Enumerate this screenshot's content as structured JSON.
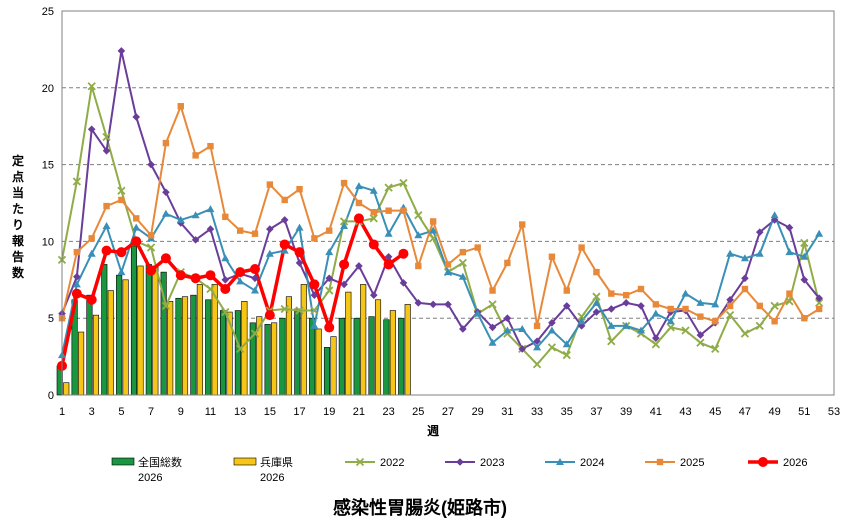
{
  "chart_data": {
    "type": "bar",
    "title": "感染性胃腸炎(姫路市)",
    "xlabel": "週",
    "ylabel": "定点当たり報告数",
    "xlim": [
      1,
      53
    ],
    "ylim": [
      0,
      25
    ],
    "x_ticks": [
      1,
      3,
      5,
      7,
      9,
      11,
      13,
      15,
      17,
      19,
      21,
      23,
      25,
      27,
      29,
      31,
      33,
      35,
      37,
      39,
      41,
      43,
      45,
      47,
      49,
      51,
      53
    ],
    "y_ticks": [
      0,
      5,
      10,
      15,
      20,
      25
    ],
    "grid": "horizontal-dashed",
    "legend_position": "bottom",
    "bar_series": [
      {
        "name": "全国総数",
        "name_line2": "2026",
        "color": "#1a9641",
        "values": [
          1.9,
          6.2,
          6.5,
          8.5,
          7.8,
          9.7,
          8.5,
          8.0,
          6.3,
          6.5,
          6.2,
          5.5,
          5.5,
          4.7,
          4.6,
          5.0,
          5.6,
          5.0,
          3.1,
          5.0,
          5.0,
          5.1,
          4.9,
          5.0
        ]
      },
      {
        "name": "兵庫県",
        "name_line2": "2026",
        "color": "#f5c518",
        "values": [
          0.8,
          4.1,
          5.2,
          6.8,
          7.5,
          8.4,
          8.4,
          6.1,
          6.4,
          7.2,
          7.2,
          5.4,
          6.1,
          5.1,
          4.7,
          6.4,
          7.2,
          4.3,
          3.8,
          6.7,
          7.2,
          6.2,
          5.5,
          5.9
        ]
      }
    ],
    "line_series": [
      {
        "name": "2022",
        "color": "#8fac48",
        "marker": "x",
        "values": [
          8.8,
          13.9,
          20.1,
          16.8,
          13.3,
          10.0,
          9.6,
          5.8,
          8.0,
          7.6,
          6.9,
          5.4,
          3.0,
          4.0,
          5.5,
          5.6,
          5.5,
          5.5,
          6.8,
          11.3,
          11.3,
          11.5,
          13.5,
          13.8,
          11.7,
          10.2,
          8.0,
          8.6,
          5.3,
          5.9,
          4.0,
          3.0,
          2.0,
          3.1,
          2.6,
          5.1,
          6.4,
          3.5,
          4.5,
          4.0,
          3.3,
          4.4,
          4.2,
          3.4,
          3.0,
          5.2,
          4.0,
          4.5,
          5.8,
          6.1,
          9.9,
          6.0
        ]
      },
      {
        "name": "2023",
        "color": "#6a3d9a",
        "marker": "diamond",
        "values": [
          5.3,
          7.7,
          17.3,
          15.9,
          22.4,
          18.1,
          15.0,
          13.2,
          11.2,
          10.1,
          10.8,
          7.5,
          7.9,
          7.6,
          10.8,
          11.4,
          8.6,
          6.5,
          7.6,
          7.2,
          8.4,
          6.5,
          9.0,
          7.3,
          6.0,
          5.9,
          5.9,
          4.3,
          5.4,
          4.4,
          5.0,
          3.0,
          3.5,
          4.7,
          5.8,
          4.5,
          5.4,
          5.6,
          6.0,
          5.8,
          3.7,
          5.4,
          5.5,
          3.9,
          4.7,
          6.2,
          7.6,
          10.6,
          11.4,
          10.9,
          7.5,
          6.3
        ]
      },
      {
        "name": "2024",
        "color": "#3a8fb7",
        "marker": "triangle",
        "values": [
          2.6,
          7.2,
          9.2,
          11.0,
          8.0,
          10.9,
          10.2,
          11.8,
          11.4,
          11.7,
          12.1,
          8.9,
          7.4,
          6.8,
          9.2,
          9.4,
          10.9,
          4.5,
          9.3,
          11.0,
          13.6,
          13.3,
          10.5,
          12.2,
          10.4,
          10.7,
          8.0,
          7.7,
          5.3,
          3.4,
          4.2,
          4.3,
          3.1,
          4.2,
          3.3,
          4.8,
          6.0,
          4.5,
          4.5,
          4.2,
          5.3,
          4.8,
          6.6,
          6.0,
          5.9,
          9.2,
          8.9,
          9.2,
          11.7,
          9.3,
          9.0,
          10.5
        ]
      },
      {
        "name": "2025",
        "color": "#e8893a",
        "marker": "square",
        "values": [
          5.0,
          9.3,
          10.2,
          12.3,
          12.7,
          11.5,
          10.4,
          16.4,
          18.8,
          15.6,
          16.2,
          11.6,
          10.7,
          10.5,
          13.7,
          12.7,
          13.4,
          10.2,
          10.7,
          13.8,
          12.5,
          11.9,
          12.0,
          12.0,
          8.4,
          11.3,
          8.5,
          9.3,
          9.6,
          6.8,
          8.6,
          11.1,
          4.5,
          9.0,
          6.8,
          9.6,
          8.0,
          6.6,
          6.5,
          6.9,
          5.9,
          5.6,
          5.6,
          5.1,
          4.8,
          5.8,
          6.9,
          5.8,
          4.8,
          6.6,
          5.0,
          5.6
        ]
      },
      {
        "name": "2026",
        "color": "#ff0000",
        "marker": "circle",
        "values": [
          1.9,
          6.6,
          6.2,
          9.4,
          9.3,
          10.0,
          8.1,
          8.9,
          7.8,
          7.6,
          7.8,
          6.9,
          8.0,
          8.2,
          5.2,
          9.8,
          9.3,
          7.2,
          4.4,
          8.5,
          11.5,
          9.8,
          8.5,
          9.2
        ]
      }
    ]
  }
}
